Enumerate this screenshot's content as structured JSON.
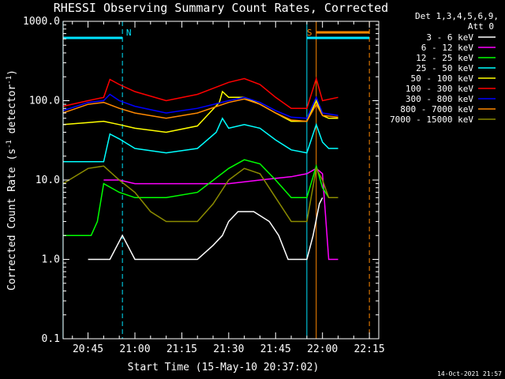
{
  "chart_data": {
    "type": "line",
    "title": "RHESSI Observing Summary Count Rates, Corrected",
    "xlabel": "Start Time (15-May-10 20:37:02)",
    "ylabel": "Corrected Count Rate (s⁻¹ detector⁻¹)",
    "ylabel_parts": [
      "Corrected Count Rate (s",
      "-1",
      " detector",
      "-1",
      ")"
    ],
    "yscale": "log",
    "xlim": [
      "20:37:02",
      "22:18:00"
    ],
    "ylim": [
      0.1,
      1000
    ],
    "x_ticks": [
      "20:45",
      "21:00",
      "21:15",
      "21:30",
      "21:45",
      "22:00",
      "22:15"
    ],
    "y_ticks": [
      "0.1",
      "1.0",
      "10.0",
      "100.0",
      "1000.0"
    ],
    "detector_info": [
      "Det 1,3,4,5,6,9,",
      "Att 0"
    ],
    "timestamp": "14-Oct-2021 21:57",
    "flags": [
      {
        "label": "N",
        "color": "#00e5ff",
        "from": "20:37",
        "to": "20:56"
      },
      {
        "label": "S",
        "color": "#00e5ff",
        "from": "21:55",
        "to": "22:15"
      },
      {
        "label": "",
        "color": "#ff8800",
        "from": "21:58",
        "to": "22:15"
      }
    ],
    "vlines": [
      {
        "time": "20:37",
        "color": "#00e5ff",
        "dashed": false
      },
      {
        "time": "20:56",
        "color": "#00e5ff",
        "dashed": true
      },
      {
        "time": "21:55",
        "color": "#00e5ff",
        "dashed": false
      },
      {
        "time": "21:58",
        "color": "#ff8800",
        "dashed": false
      },
      {
        "time": "22:15",
        "color": "#ff8800",
        "dashed": true
      }
    ],
    "series": [
      {
        "name": "3 - 6 keV",
        "color": "#ffffff",
        "x": [
          "20:45",
          "20:49",
          "20:52",
          "20:56",
          "21:00",
          "21:13",
          "21:15",
          "21:20",
          "21:25",
          "21:28",
          "21:30",
          "21:33",
          "21:38",
          "21:43",
          "21:46",
          "21:49",
          "21:52",
          "21:55",
          "21:57",
          "21:59",
          "22:00"
        ],
        "y": [
          1.0,
          1.0,
          1.0,
          2.0,
          1.0,
          1.0,
          1.0,
          1.0,
          1.5,
          2.0,
          3.0,
          4.0,
          4.0,
          3.0,
          2.0,
          1.0,
          1.0,
          1.0,
          2.0,
          5.0,
          6.0
        ]
      },
      {
        "name": "6 - 12 keV",
        "color": "#ff00ff",
        "x": [
          "20:50",
          "20:55",
          "21:00",
          "21:10",
          "21:20",
          "21:30",
          "21:40",
          "21:50",
          "21:55",
          "21:58",
          "22:00",
          "22:02",
          "22:05"
        ],
        "y": [
          10,
          10,
          9,
          9,
          9,
          9,
          10,
          11,
          12,
          14,
          12,
          1.0,
          1.0
        ]
      },
      {
        "name": "12 - 25 keV",
        "color": "#00ff00",
        "x": [
          "20:37",
          "20:46",
          "20:48",
          "20:50",
          "20:55",
          "21:00",
          "21:10",
          "21:20",
          "21:30",
          "21:35",
          "21:40",
          "21:45",
          "21:50",
          "21:55",
          "21:58",
          "22:00",
          "22:02",
          "22:05"
        ],
        "y": [
          2.0,
          2.0,
          3.0,
          9,
          7,
          6,
          6,
          7,
          14,
          18,
          16,
          10,
          6,
          6,
          15,
          8,
          6,
          6
        ]
      },
      {
        "name": "25 - 50 keV",
        "color": "#00ffff",
        "x": [
          "20:37",
          "20:45",
          "20:50",
          "20:52",
          "20:55",
          "21:00",
          "21:10",
          "21:20",
          "21:26",
          "21:28",
          "21:30",
          "21:35",
          "21:40",
          "21:45",
          "21:50",
          "21:55",
          "21:58",
          "22:00",
          "22:02",
          "22:05"
        ],
        "y": [
          17,
          17,
          17,
          38,
          33,
          25,
          22,
          25,
          40,
          60,
          45,
          50,
          45,
          32,
          24,
          22,
          50,
          30,
          25,
          25
        ]
      },
      {
        "name": "50 - 100 keV",
        "color": "#ffff00",
        "x": [
          "20:37",
          "20:45",
          "20:50",
          "20:55",
          "21:00",
          "21:10",
          "21:20",
          "21:27",
          "21:28",
          "21:30",
          "21:35",
          "21:40",
          "21:45",
          "21:50",
          "21:55",
          "21:58",
          "22:00",
          "22:02",
          "22:05"
        ],
        "y": [
          50,
          53,
          55,
          50,
          45,
          40,
          48,
          95,
          130,
          110,
          110,
          90,
          70,
          55,
          55,
          100,
          65,
          60,
          60
        ]
      },
      {
        "name": "100 - 300 keV",
        "color": "#ff0000",
        "x": [
          "20:37",
          "20:45",
          "20:50",
          "20:52",
          "20:55",
          "21:00",
          "21:10",
          "21:20",
          "21:30",
          "21:35",
          "21:40",
          "21:45",
          "21:50",
          "21:55",
          "21:58",
          "22:00",
          "22:05"
        ],
        "y": [
          85,
          100,
          110,
          185,
          160,
          130,
          100,
          120,
          170,
          190,
          160,
          110,
          80,
          80,
          190,
          100,
          110
        ]
      },
      {
        "name": "300 - 800 keV",
        "color": "#0000ff",
        "x": [
          "20:37",
          "20:45",
          "20:50",
          "20:52",
          "20:55",
          "21:00",
          "21:10",
          "21:20",
          "21:30",
          "21:35",
          "21:40",
          "21:45",
          "21:50",
          "21:55",
          "21:58",
          "22:00",
          "22:05"
        ],
        "y": [
          75,
          95,
          100,
          120,
          100,
          85,
          70,
          80,
          100,
          110,
          95,
          75,
          62,
          60,
          110,
          70,
          65
        ]
      },
      {
        "name": "800 - 7000 keV",
        "color": "#ff8800",
        "x": [
          "20:37",
          "20:45",
          "20:50",
          "20:55",
          "21:00",
          "21:10",
          "21:20",
          "21:30",
          "21:35",
          "21:40",
          "21:45",
          "21:50",
          "21:55",
          "21:58",
          "22:00",
          "22:05"
        ],
        "y": [
          70,
          90,
          95,
          80,
          70,
          60,
          70,
          95,
          105,
          90,
          70,
          57,
          55,
          90,
          65,
          62
        ]
      },
      {
        "name": "7000 - 15000 keV",
        "color": "#8b8b00",
        "x": [
          "20:37",
          "20:45",
          "20:50",
          "20:55",
          "21:00",
          "21:05",
          "21:10",
          "21:20",
          "21:25",
          "21:30",
          "21:35",
          "21:40",
          "21:45",
          "21:50",
          "21:55",
          "21:58",
          "22:00",
          "22:02",
          "22:05"
        ],
        "y": [
          9,
          14,
          15,
          10,
          7,
          4,
          3,
          3,
          5,
          10,
          14,
          12,
          6,
          3,
          3,
          14,
          10,
          6,
          6
        ]
      }
    ]
  }
}
